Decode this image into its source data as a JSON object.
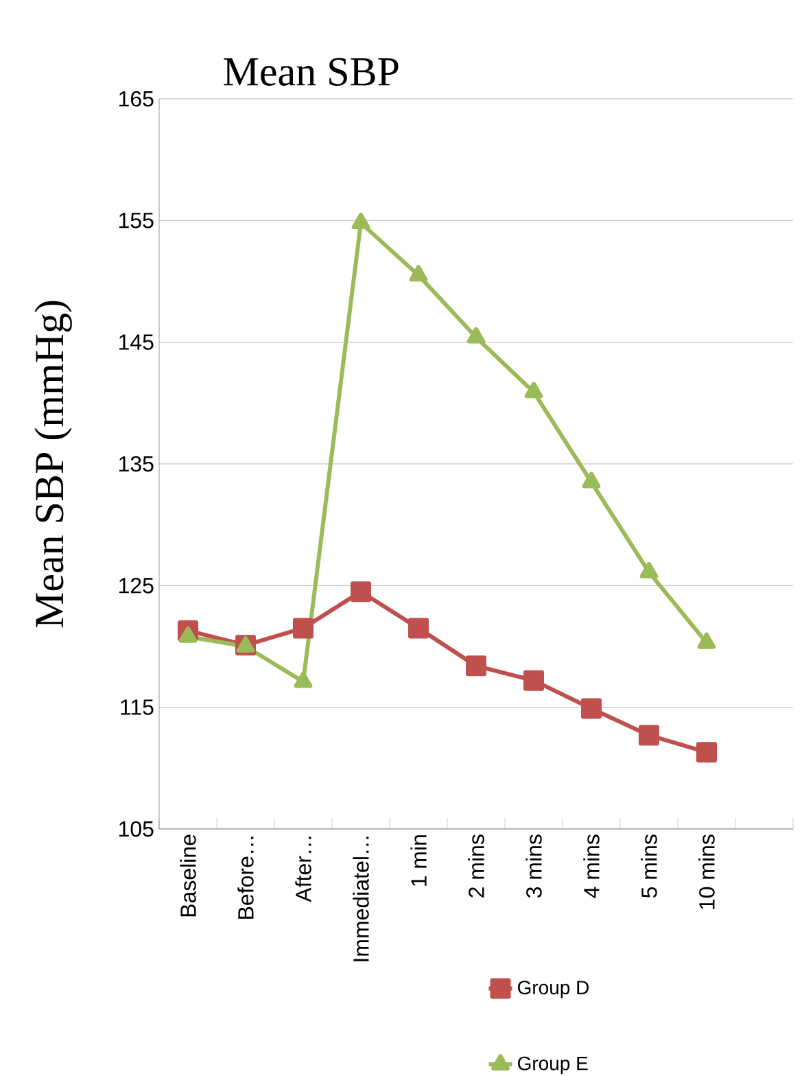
{
  "chart_data": {
    "type": "line",
    "title": "Mean SBP",
    "ylabel": "Mean SBP (mmHg)",
    "categories": [
      "Baseline",
      "Before…",
      "After…",
      "Immediatel…",
      "1 min",
      "2 mins",
      "3 mins",
      "4 mins",
      "5 mins",
      "10 mins",
      null
    ],
    "series": [
      {
        "name": "Group D",
        "color": "#c0504d",
        "marker": "square",
        "values": [
          121.3,
          120.1,
          121.5,
          124.5,
          121.5,
          118.4,
          117.2,
          114.9,
          112.7,
          111.3,
          null
        ]
      },
      {
        "name": "Group E",
        "color": "#9bbb59",
        "marker": "triangle",
        "values": [
          120.8,
          120.0,
          117.1,
          154.8,
          150.5,
          145.4,
          140.9,
          133.5,
          126.1,
          120.3,
          null
        ]
      }
    ],
    "ylim": [
      105,
      165
    ],
    "yticks": [
      105,
      115,
      125,
      135,
      145,
      155,
      165
    ],
    "grid": "y",
    "legend": "bottom",
    "line_style": "solid"
  }
}
